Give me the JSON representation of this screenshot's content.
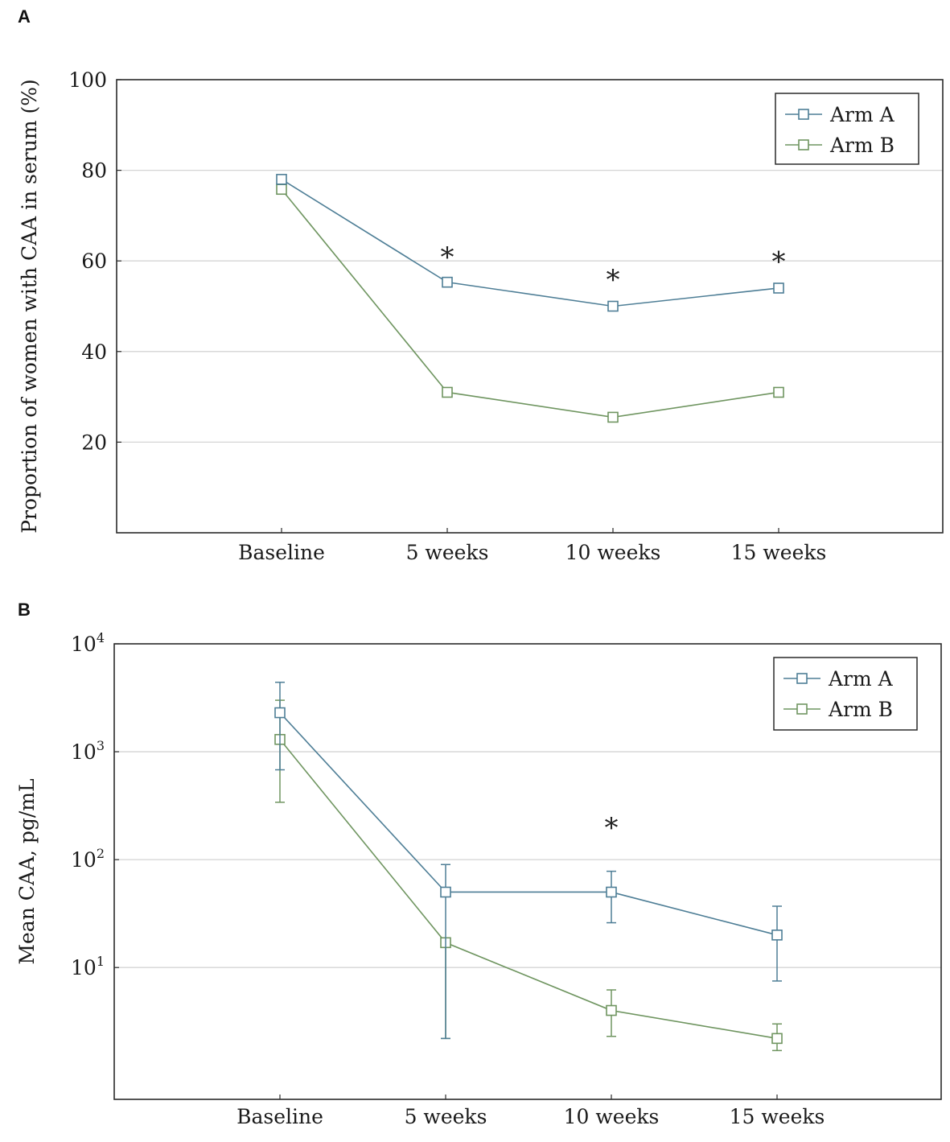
{
  "colors": {
    "arm_a": "#4e7e96",
    "arm_b": "#6f9560"
  },
  "chart_data": [
    {
      "panel": "A",
      "type": "line",
      "marker": "square",
      "categories": [
        "Baseline",
        "5 weeks",
        "10 weeks",
        "15 weeks"
      ],
      "series": [
        {
          "name": "Arm A",
          "values": [
            78,
            55.3,
            50,
            54
          ]
        },
        {
          "name": "Arm B",
          "values": [
            75.8,
            31,
            25.5,
            31
          ]
        }
      ],
      "ylabel": "Proportion of women with CAA in serum (%)",
      "xlabel": "",
      "ylim": [
        0,
        100
      ],
      "yscale": "linear",
      "yticks": [
        20,
        40,
        60,
        80,
        100
      ],
      "ytick_labels": [
        "20",
        "40",
        "60",
        "80",
        "100"
      ],
      "grid": true,
      "legend": "top-right",
      "annotations": [
        {
          "text": "*",
          "category": "5 weeks",
          "y": 62
        },
        {
          "text": "*",
          "category": "10 weeks",
          "y": 57
        },
        {
          "text": "*",
          "category": "15 weeks",
          "y": 61
        }
      ]
    },
    {
      "panel": "B",
      "type": "line",
      "marker": "square",
      "categories": [
        "Baseline",
        "5 weeks",
        "10 weeks",
        "15 weeks"
      ],
      "series": [
        {
          "name": "Arm A",
          "values": [
            2300,
            50,
            50,
            20
          ],
          "error_low": [
            680,
            2.2,
            26,
            7.5
          ],
          "error_high": [
            4400,
            90,
            78,
            37
          ]
        },
        {
          "name": "Arm B",
          "values": [
            1300,
            17,
            4,
            2.2
          ],
          "error_low": [
            340,
            2.2,
            2.3,
            1.7
          ],
          "error_high": [
            3000,
            17,
            6.2,
            3
          ]
        }
      ],
      "ylabel": "Mean CAA, pg/mL",
      "xlabel": "",
      "ylim": [
        0.6,
        10000
      ],
      "yscale": "log",
      "yticks": [
        10,
        100,
        1000,
        10000
      ],
      "ytick_labels": [
        {
          "base": "10",
          "exp": "1"
        },
        {
          "base": "10",
          "exp": "2"
        },
        {
          "base": "10",
          "exp": "3"
        },
        {
          "base": "10",
          "exp": "4"
        }
      ],
      "grid": true,
      "legend": "top-right",
      "annotations": [
        {
          "text": "*",
          "category": "10 weeks",
          "y": 220
        }
      ]
    }
  ]
}
